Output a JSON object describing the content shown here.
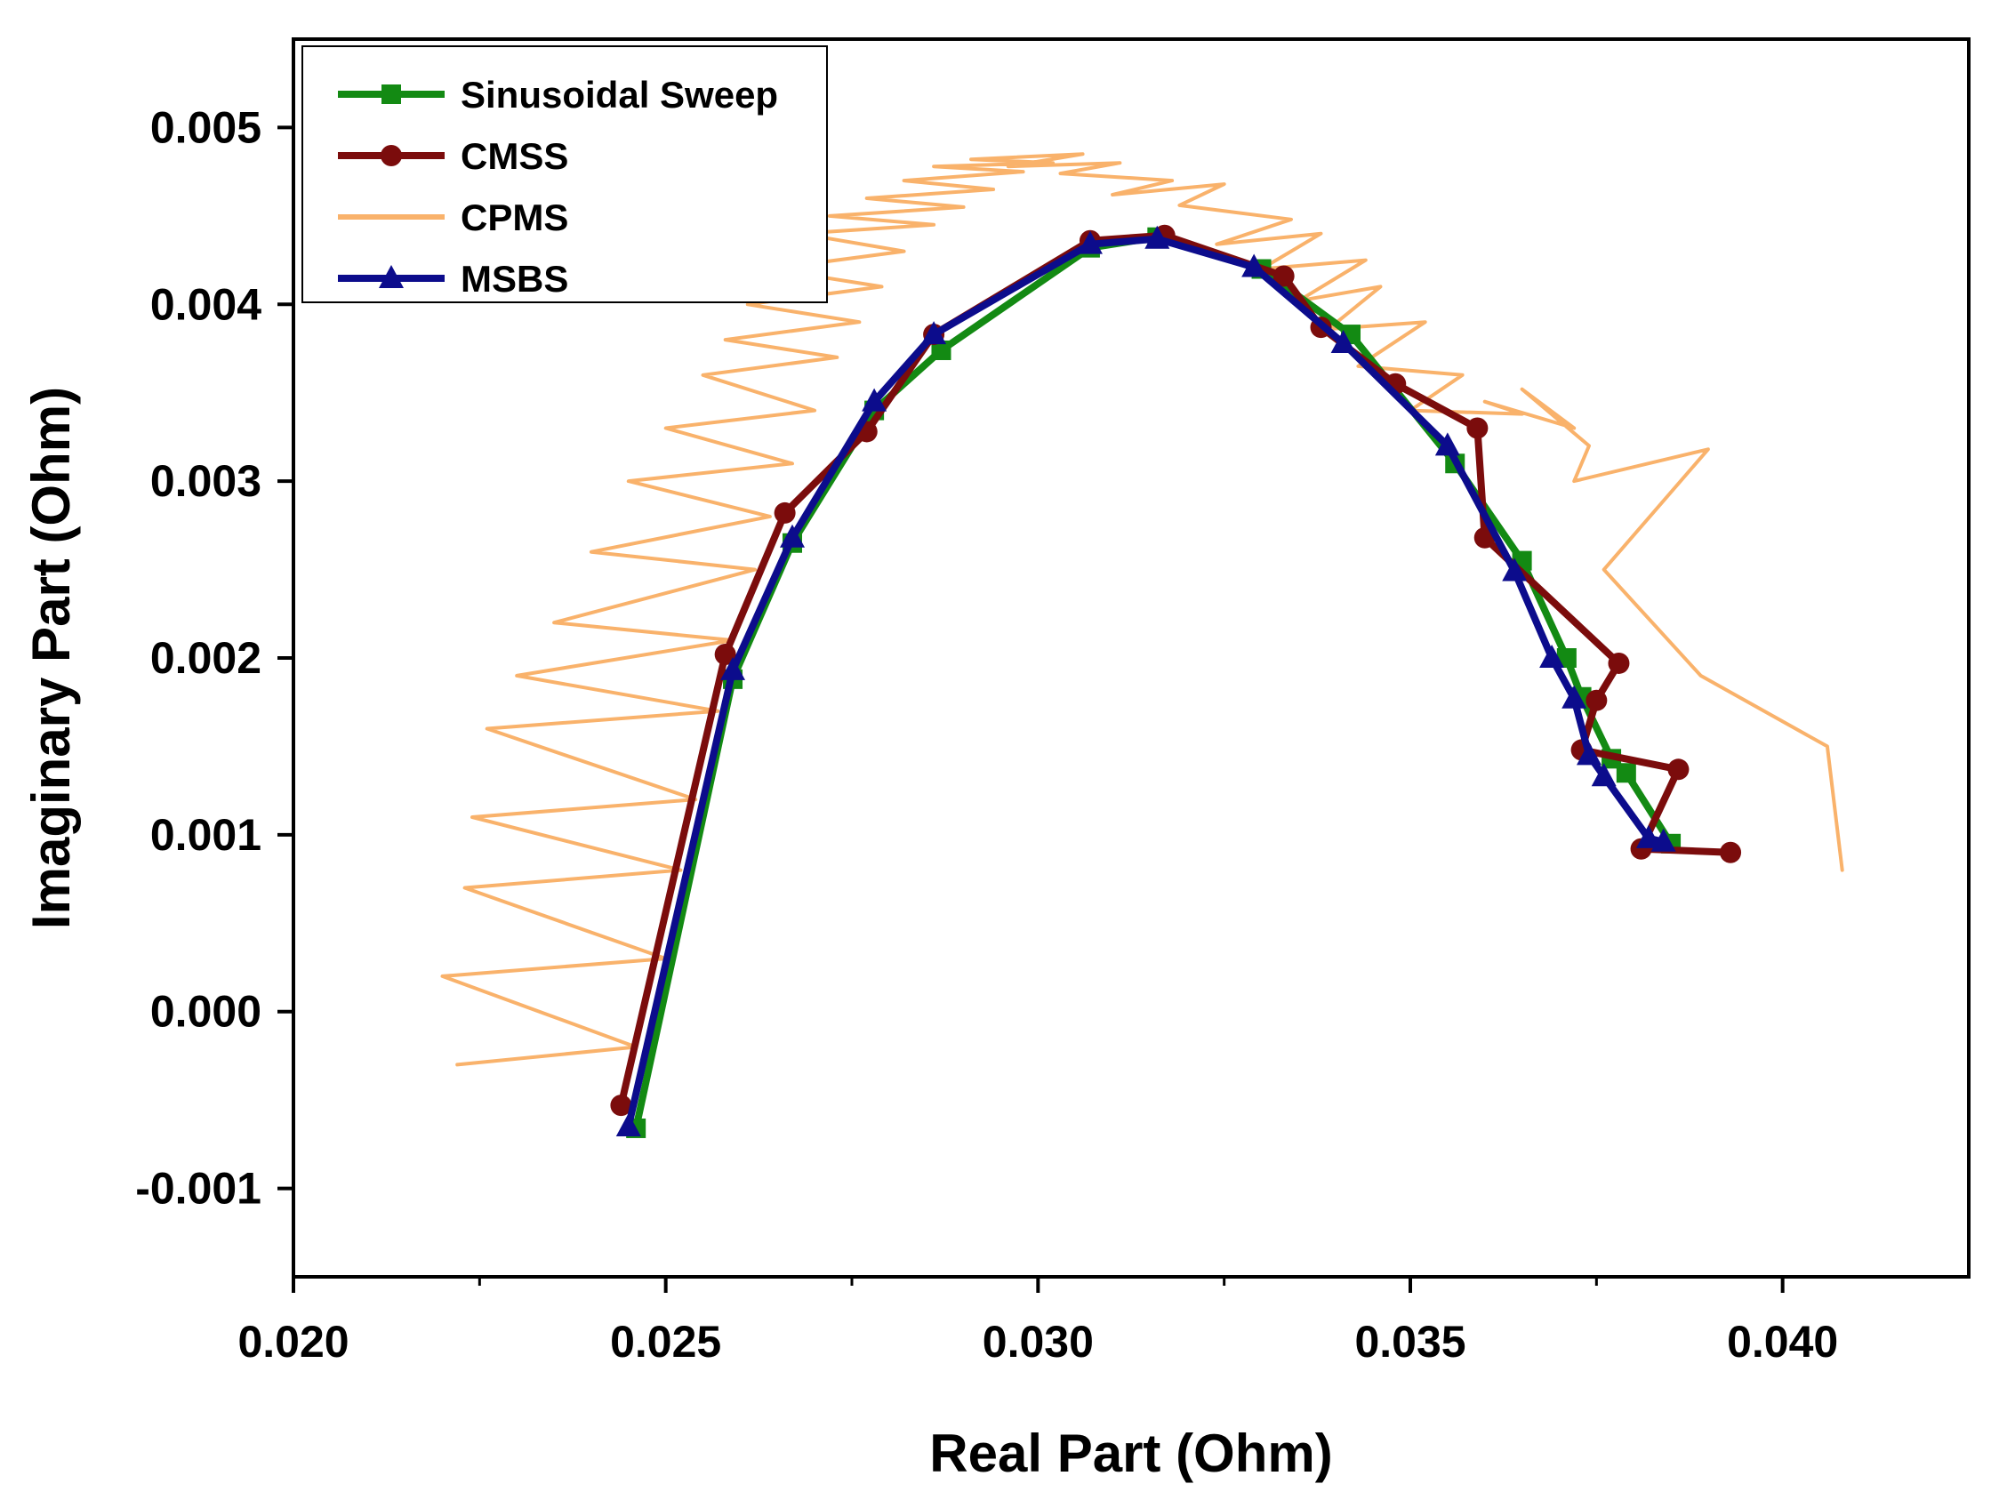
{
  "chart_data": {
    "type": "line",
    "title": "",
    "xlabel": "Real Part (Ohm)",
    "ylabel": "Imaginary Part (Ohm)",
    "xlim": [
      0.02,
      0.0425
    ],
    "ylim": [
      -0.0015,
      0.0055
    ],
    "x_ticks": [
      0.02,
      0.025,
      0.03,
      0.035,
      0.04
    ],
    "x_tick_labels": [
      "0.020",
      "0.025",
      "0.030",
      "0.035",
      "0.040"
    ],
    "y_ticks": [
      -0.001,
      0.0,
      0.001,
      0.002,
      0.003,
      0.004,
      0.005
    ],
    "y_tick_labels": [
      "-0.001",
      "0.000",
      "0.001",
      "0.002",
      "0.003",
      "0.004",
      "0.005"
    ],
    "legend_position": "top-left",
    "grid": false,
    "series": [
      {
        "name": "Sinusoidal Sweep",
        "color": "#138a13",
        "marker": "square",
        "x": [
          0.0246,
          0.0259,
          0.0267,
          0.0278,
          0.0287,
          0.0307,
          0.0316,
          0.033,
          0.0342,
          0.0356,
          0.0365,
          0.0371,
          0.0373,
          0.0377,
          0.0379,
          0.0385
        ],
        "y": [
          -0.00066,
          0.00188,
          0.00265,
          0.0034,
          0.00374,
          0.00432,
          0.00438,
          0.0042,
          0.00383,
          0.0031,
          0.00255,
          0.002,
          0.00178,
          0.00143,
          0.00135,
          0.00095
        ]
      },
      {
        "name": "CMSS",
        "color": "#7b0c0c",
        "marker": "circle",
        "x": [
          0.0244,
          0.0258,
          0.0266,
          0.0277,
          0.0286,
          0.0307,
          0.0317,
          0.0333,
          0.0338,
          0.0348,
          0.0359,
          0.036,
          0.0378,
          0.0375,
          0.0373,
          0.0386,
          0.0381,
          0.0393
        ],
        "y": [
          -0.00053,
          0.00202,
          0.00282,
          0.00328,
          0.00383,
          0.00436,
          0.00439,
          0.00416,
          0.00387,
          0.00355,
          0.0033,
          0.00268,
          0.00197,
          0.00176,
          0.00148,
          0.00137,
          0.00092,
          0.0009
        ]
      },
      {
        "name": "CPMS",
        "color": "#f9b26b",
        "marker": "none",
        "x": [
          0.0222,
          0.0246,
          0.022,
          0.025,
          0.0223,
          0.0252,
          0.0224,
          0.0254,
          0.0226,
          0.0257,
          0.023,
          0.0259,
          0.0235,
          0.0262,
          0.024,
          0.0264,
          0.0245,
          0.0267,
          0.025,
          0.027,
          0.0255,
          0.0273,
          0.0258,
          0.0276,
          0.0261,
          0.0279,
          0.0264,
          0.0282,
          0.0268,
          0.0286,
          0.0272,
          0.029,
          0.0277,
          0.0294,
          0.0282,
          0.0298,
          0.0286,
          0.0302,
          0.0291,
          0.0306,
          0.0296,
          0.0311,
          0.0303,
          0.0318,
          0.031,
          0.0325,
          0.0319,
          0.0334,
          0.0324,
          0.0338,
          0.033,
          0.0344,
          0.0335,
          0.0346,
          0.0339,
          0.0352,
          0.0343,
          0.0357,
          0.035,
          0.0365,
          0.036,
          0.0372,
          0.0365,
          0.0374,
          0.0372,
          0.039,
          0.0376,
          0.0389,
          0.0406,
          0.0408
        ],
        "y": [
          -0.0003,
          -0.0002,
          0.0002,
          0.0003,
          0.0007,
          0.0008,
          0.0011,
          0.0012,
          0.0016,
          0.0017,
          0.0019,
          0.0021,
          0.0022,
          0.0025,
          0.0026,
          0.0028,
          0.003,
          0.0031,
          0.0033,
          0.0034,
          0.0036,
          0.0037,
          0.0038,
          0.0039,
          0.004,
          0.0041,
          0.0042,
          0.0043,
          0.0044,
          0.00445,
          0.0045,
          0.00455,
          0.0046,
          0.00465,
          0.0047,
          0.00475,
          0.00478,
          0.0048,
          0.00482,
          0.00485,
          0.00478,
          0.0048,
          0.00474,
          0.0047,
          0.00462,
          0.00468,
          0.00456,
          0.00448,
          0.00434,
          0.0044,
          0.0042,
          0.00425,
          0.00402,
          0.0041,
          0.00386,
          0.0039,
          0.00365,
          0.0036,
          0.0034,
          0.00338,
          0.00345,
          0.0033,
          0.00352,
          0.0032,
          0.003,
          0.00318,
          0.0025,
          0.0019,
          0.0015,
          0.0008
        ]
      },
      {
        "name": "MSBS",
        "color": "#0c0c8c",
        "marker": "triangle",
        "x": [
          0.0245,
          0.0259,
          0.0267,
          0.0278,
          0.0286,
          0.0307,
          0.0316,
          0.0329,
          0.0341,
          0.0355,
          0.0364,
          0.0369,
          0.0372,
          0.0374,
          0.0376,
          0.0382,
          0.0384
        ],
        "y": [
          -0.00065,
          0.00193,
          0.00268,
          0.00345,
          0.00383,
          0.00434,
          0.00437,
          0.00421,
          0.00378,
          0.0032,
          0.00249,
          0.002,
          0.00177,
          0.00145,
          0.00133,
          0.00098,
          0.00096
        ]
      }
    ]
  }
}
